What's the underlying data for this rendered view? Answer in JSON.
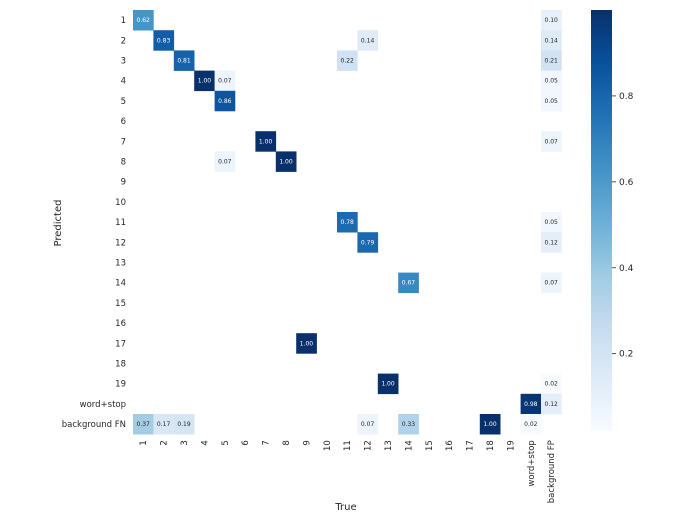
{
  "chart_data": {
    "type": "heatmap",
    "title": "",
    "xlabel": "True",
    "ylabel": "Predicted",
    "x_categories": [
      "1",
      "2",
      "3",
      "4",
      "5",
      "6",
      "7",
      "8",
      "9",
      "10",
      "11",
      "12",
      "13",
      "14",
      "15",
      "16",
      "17",
      "18",
      "19",
      "word+stop",
      "background FP"
    ],
    "y_categories": [
      "1",
      "2",
      "3",
      "4",
      "5",
      "6",
      "7",
      "8",
      "9",
      "10",
      "11",
      "12",
      "13",
      "14",
      "15",
      "16",
      "17",
      "18",
      "19",
      "word+stop",
      "background FN"
    ],
    "cells": [
      {
        "row": 0,
        "col": 0,
        "value": 0.62,
        "label": "0.62"
      },
      {
        "row": 0,
        "col": 20,
        "value": 0.1,
        "label": "0.10"
      },
      {
        "row": 1,
        "col": 1,
        "value": 0.83,
        "label": "0.83"
      },
      {
        "row": 1,
        "col": 11,
        "value": 0.14,
        "label": "0.14"
      },
      {
        "row": 1,
        "col": 20,
        "value": 0.14,
        "label": "0.14"
      },
      {
        "row": 2,
        "col": 2,
        "value": 0.81,
        "label": "0.81"
      },
      {
        "row": 2,
        "col": 10,
        "value": 0.22,
        "label": "0.22"
      },
      {
        "row": 2,
        "col": 20,
        "value": 0.21,
        "label": "0.21"
      },
      {
        "row": 3,
        "col": 3,
        "value": 1.0,
        "label": "1.00"
      },
      {
        "row": 3,
        "col": 4,
        "value": 0.07,
        "label": "0.07"
      },
      {
        "row": 3,
        "col": 20,
        "value": 0.05,
        "label": "0.05"
      },
      {
        "row": 4,
        "col": 4,
        "value": 0.86,
        "label": "0.86"
      },
      {
        "row": 4,
        "col": 20,
        "value": 0.05,
        "label": "0.05"
      },
      {
        "row": 6,
        "col": 6,
        "value": 1.0,
        "label": "1.00"
      },
      {
        "row": 6,
        "col": 20,
        "value": 0.07,
        "label": "0.07"
      },
      {
        "row": 7,
        "col": 4,
        "value": 0.07,
        "label": "0.07"
      },
      {
        "row": 7,
        "col": 7,
        "value": 1.0,
        "label": "1.00"
      },
      {
        "row": 10,
        "col": 10,
        "value": 0.78,
        "label": "0.78"
      },
      {
        "row": 10,
        "col": 20,
        "value": 0.05,
        "label": "0.05"
      },
      {
        "row": 11,
        "col": 11,
        "value": 0.79,
        "label": "0.79"
      },
      {
        "row": 11,
        "col": 20,
        "value": 0.12,
        "label": "0.12"
      },
      {
        "row": 13,
        "col": 13,
        "value": 0.67,
        "label": "0.67"
      },
      {
        "row": 13,
        "col": 20,
        "value": 0.07,
        "label": "0.07"
      },
      {
        "row": 16,
        "col": 8,
        "value": 1.0,
        "label": "1.00"
      },
      {
        "row": 18,
        "col": 12,
        "value": 1.0,
        "label": "1.00"
      },
      {
        "row": 18,
        "col": 20,
        "value": 0.02,
        "label": "0.02"
      },
      {
        "row": 19,
        "col": 19,
        "value": 0.98,
        "label": "0.98"
      },
      {
        "row": 19,
        "col": 20,
        "value": 0.12,
        "label": "0.12"
      },
      {
        "row": 20,
        "col": 0,
        "value": 0.37,
        "label": "0.37"
      },
      {
        "row": 20,
        "col": 1,
        "value": 0.17,
        "label": "0.17"
      },
      {
        "row": 20,
        "col": 2,
        "value": 0.19,
        "label": "0.19"
      },
      {
        "row": 20,
        "col": 11,
        "value": 0.07,
        "label": "0.07"
      },
      {
        "row": 20,
        "col": 13,
        "value": 0.33,
        "label": "0.33"
      },
      {
        "row": 20,
        "col": 17,
        "value": 1.0,
        "label": "1.00"
      },
      {
        "row": 20,
        "col": 19,
        "value": 0.02,
        "label": "0.02"
      }
    ],
    "colorbar": {
      "min": 0.02,
      "max": 1.0,
      "ticks": [
        "0.2",
        "0.4",
        "0.6",
        "0.8"
      ],
      "tick_values": [
        0.2,
        0.4,
        0.6,
        0.8
      ]
    },
    "colormap": [
      "#f7fbff",
      "#deebf7",
      "#c6dbef",
      "#9ecae1",
      "#6baed6",
      "#4292c6",
      "#2171b5",
      "#08519c",
      "#08306b"
    ],
    "grid": false,
    "legend": "colorbar-right"
  }
}
